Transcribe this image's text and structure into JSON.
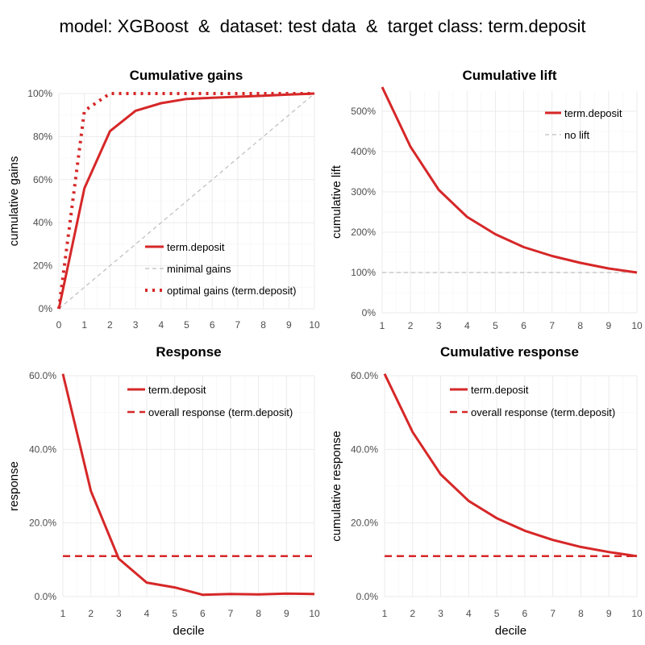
{
  "title": "model: XGBoost  &  dataset: test data  &  target class: term.deposit",
  "colors": {
    "series": "#d62728",
    "reference": "#bdbdbd",
    "grid": "#ebebeb"
  },
  "chart_data": [
    {
      "type": "line",
      "title": "Cumulative gains",
      "xlabel": "",
      "ylabel": "cumulative gains",
      "xlim": [
        0,
        10
      ],
      "ylim": [
        0,
        1
      ],
      "x_ticks": [
        "0",
        "1",
        "2",
        "3",
        "4",
        "5",
        "6",
        "7",
        "8",
        "9",
        "10"
      ],
      "y_ticks": [
        "0%",
        "20%",
        "40%",
        "60%",
        "80%",
        "100%"
      ],
      "legend_position": "bottom-right",
      "series": [
        {
          "name": "term.deposit",
          "style": "solid",
          "x": [
            0,
            1,
            2,
            3,
            4,
            5,
            6,
            7,
            8,
            9,
            10
          ],
          "y": [
            0,
            0.56,
            0.825,
            0.92,
            0.955,
            0.975,
            0.98,
            0.985,
            0.99,
            0.995,
            1.0
          ]
        },
        {
          "name": "minimal gains",
          "style": "dashed-grey",
          "x": [
            0,
            10
          ],
          "y": [
            0,
            1
          ]
        },
        {
          "name": "optimal gains (term.deposit)",
          "style": "dotted",
          "x": [
            0,
            1,
            2,
            3,
            4,
            5,
            6,
            7,
            8,
            9,
            10
          ],
          "y": [
            0,
            0.92,
            1,
            1,
            1,
            1,
            1,
            1,
            1,
            1,
            1
          ]
        }
      ]
    },
    {
      "type": "line",
      "title": "Cumulative lift",
      "xlabel": "",
      "ylabel": "cumulative lift",
      "xlim": [
        1,
        10
      ],
      "ylim": [
        0,
        5.5
      ],
      "x_ticks": [
        "1",
        "2",
        "3",
        "4",
        "5",
        "6",
        "7",
        "8",
        "9",
        "10"
      ],
      "y_ticks": [
        "0%",
        "100%",
        "200%",
        "300%",
        "400%",
        "500%"
      ],
      "legend_position": "top-right",
      "series": [
        {
          "name": "term.deposit",
          "style": "solid",
          "x": [
            1,
            2,
            3,
            4,
            5,
            6,
            7,
            8,
            9,
            10
          ],
          "y": [
            5.6,
            4.12,
            3.05,
            2.38,
            1.95,
            1.63,
            1.41,
            1.24,
            1.1,
            1.0
          ]
        },
        {
          "name": "no lift",
          "style": "dashed-grey",
          "x": [
            1,
            10
          ],
          "y": [
            1,
            1
          ]
        }
      ]
    },
    {
      "type": "line",
      "title": "Response",
      "xlabel": "decile",
      "ylabel": "response",
      "xlim": [
        1,
        10
      ],
      "ylim": [
        0,
        0.6
      ],
      "x_ticks": [
        "1",
        "2",
        "3",
        "4",
        "5",
        "6",
        "7",
        "8",
        "9",
        "10"
      ],
      "y_ticks": [
        "0.0%",
        "20.0%",
        "40.0%",
        "60.0%"
      ],
      "legend_position": "top-right",
      "series": [
        {
          "name": "term.deposit",
          "style": "solid",
          "x": [
            1,
            2,
            3,
            4,
            5,
            6,
            7,
            8,
            9,
            10
          ],
          "y": [
            0.605,
            0.287,
            0.103,
            0.038,
            0.025,
            0.005,
            0.007,
            0.006,
            0.008,
            0.007
          ]
        },
        {
          "name": "overall response (term.deposit)",
          "style": "dashed",
          "x": [
            1,
            10
          ],
          "y": [
            0.11,
            0.11
          ]
        }
      ]
    },
    {
      "type": "line",
      "title": "Cumulative response",
      "xlabel": "decile",
      "ylabel": "cumulative response",
      "xlim": [
        1,
        10
      ],
      "ylim": [
        0,
        0.6
      ],
      "x_ticks": [
        "1",
        "2",
        "3",
        "4",
        "5",
        "6",
        "7",
        "8",
        "9",
        "10"
      ],
      "y_ticks": [
        "0.0%",
        "20.0%",
        "40.0%",
        "60.0%"
      ],
      "legend_position": "top-right",
      "series": [
        {
          "name": "term.deposit",
          "style": "solid",
          "x": [
            1,
            2,
            3,
            4,
            5,
            6,
            7,
            8,
            9,
            10
          ],
          "y": [
            0.605,
            0.447,
            0.332,
            0.26,
            0.213,
            0.179,
            0.154,
            0.135,
            0.121,
            0.11
          ]
        },
        {
          "name": "overall response (term.deposit)",
          "style": "dashed",
          "x": [
            1,
            10
          ],
          "y": [
            0.11,
            0.11
          ]
        }
      ]
    }
  ]
}
